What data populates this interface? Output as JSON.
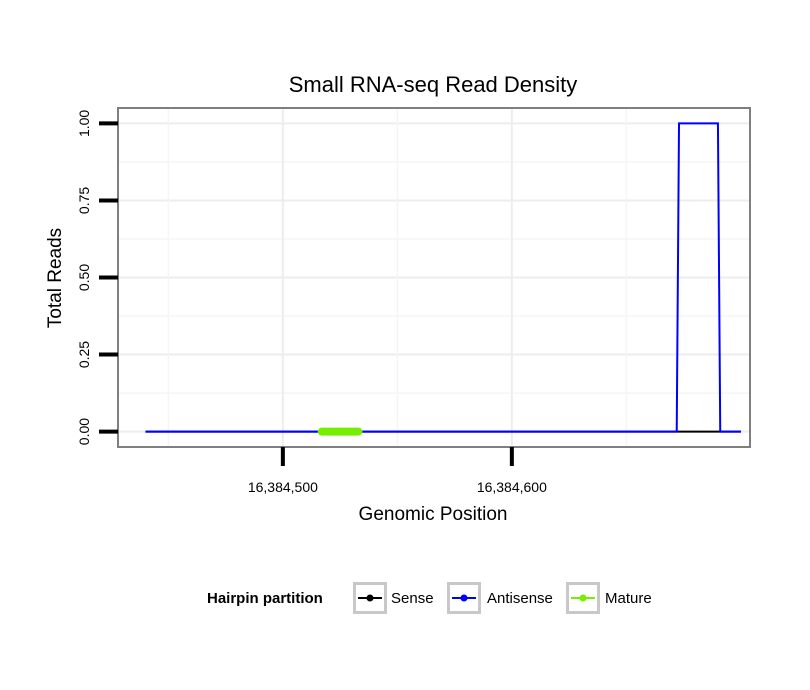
{
  "chart_data": {
    "type": "line",
    "title": "Small RNA-seq Read Density",
    "xlabel": "Genomic Position",
    "ylabel": "Total Reads",
    "xlim": [
      16384428,
      16384704
    ],
    "ylim": [
      -0.05,
      1.05
    ],
    "x_ticks": [
      16384500,
      16384600
    ],
    "x_tick_labels": [
      "16,384,500",
      "16,384,600"
    ],
    "y_ticks": [
      0,
      0.25,
      0.5,
      0.75,
      1.0
    ],
    "y_tick_labels": [
      "0.00",
      "0.25",
      "0.50",
      "0.75",
      "1.00"
    ],
    "grid": true,
    "legend_position": "bottom",
    "legend_title": "Hairpin partition",
    "series": [
      {
        "name": "Sense",
        "color": "#000000",
        "x": [
          16384440,
          16384700
        ],
        "y": [
          0,
          0
        ]
      },
      {
        "name": "Antisense",
        "color": "#0000ff",
        "x": [
          16384440,
          16384672,
          16384673,
          16384690,
          16384691,
          16384700
        ],
        "y": [
          0,
          0,
          1,
          1,
          0,
          0
        ]
      },
      {
        "name": "Mature",
        "color": "#77ee00",
        "x": [
          16384517,
          16384533
        ],
        "y": [
          0,
          0
        ]
      }
    ]
  }
}
